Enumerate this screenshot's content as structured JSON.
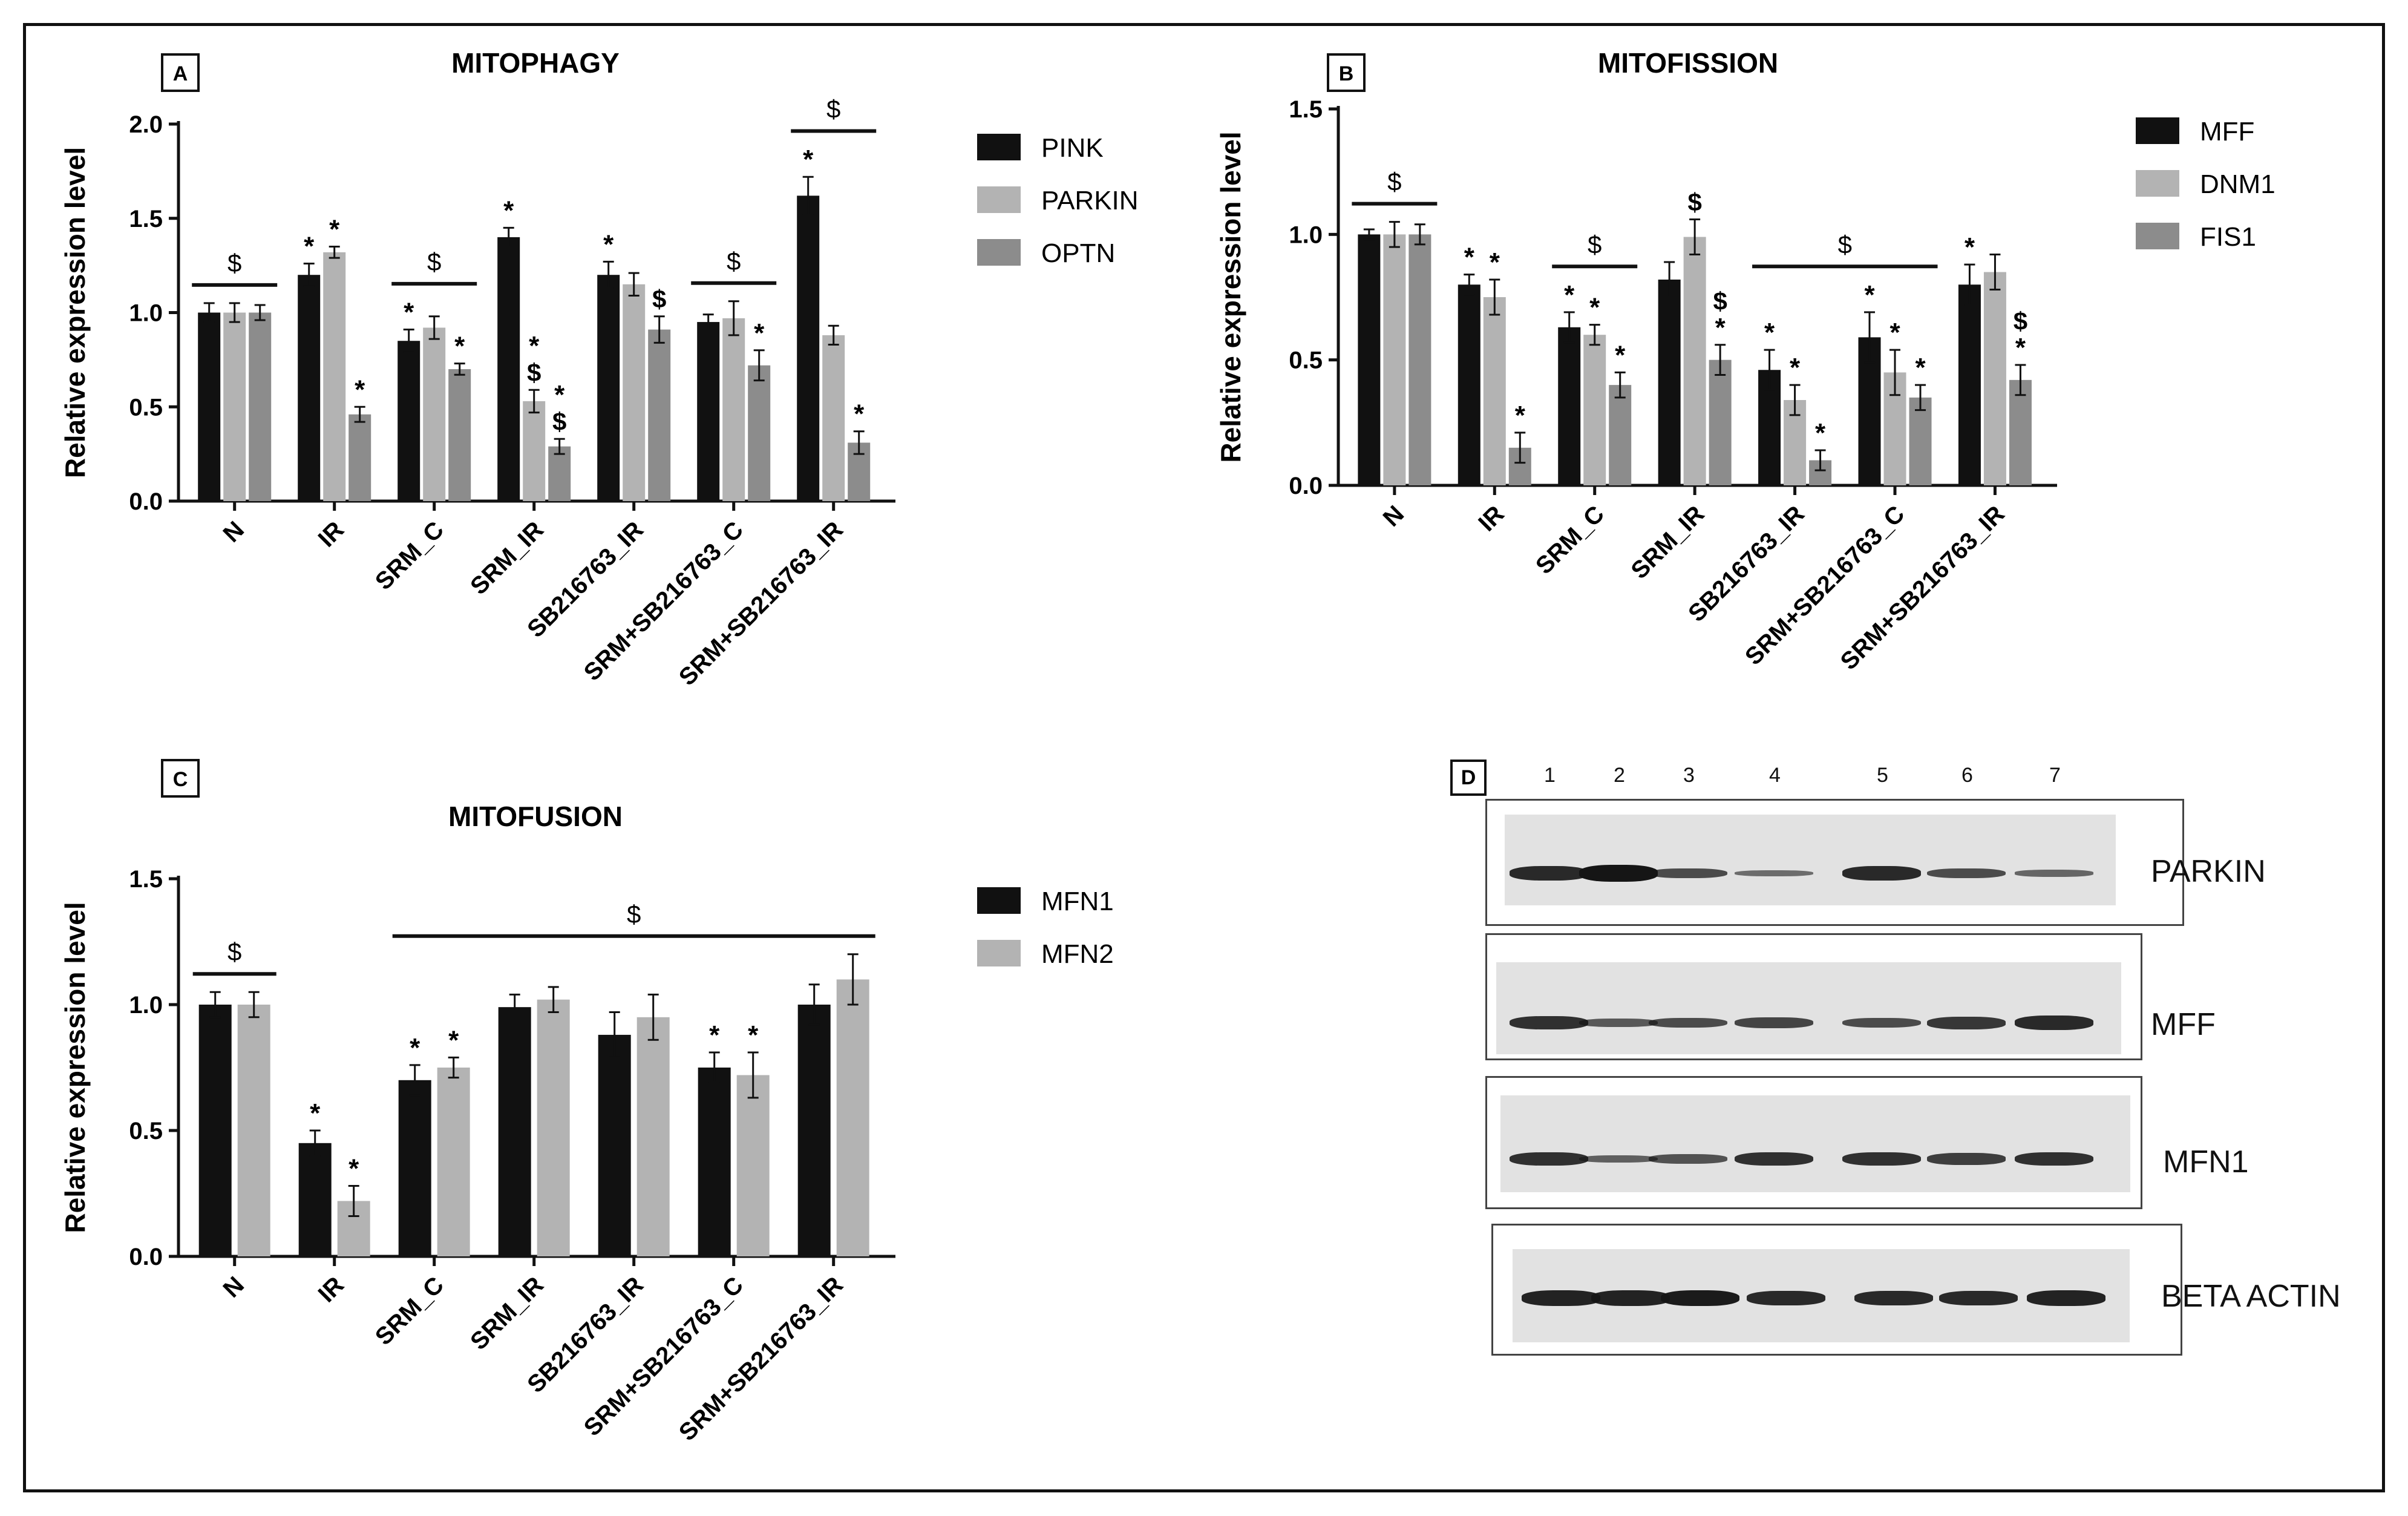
{
  "chart_data": [
    {
      "id": "A",
      "type": "bar",
      "panel_label": "A",
      "title": "MITOPHAGY",
      "ylabel": "Relative expression level",
      "xlabel": "",
      "ylim": [
        0,
        2.0
      ],
      "yticks": [
        "0.0",
        "0.5",
        "1.0",
        "1.5",
        "2.0"
      ],
      "categories": [
        "N",
        "IR",
        "SRM_C",
        "SRM_IR",
        "SB216763_IR",
        "SRM+SB216763_C",
        "SRM+SB216763_IR"
      ],
      "series": [
        {
          "name": "PINK",
          "color": "#111111",
          "values": [
            1.0,
            1.2,
            0.85,
            1.4,
            1.2,
            0.95,
            1.62
          ],
          "errors": [
            0.05,
            0.06,
            0.06,
            0.05,
            0.07,
            0.04,
            0.1
          ],
          "marks": [
            "",
            "*",
            "*",
            "*",
            "*",
            "",
            "*"
          ]
        },
        {
          "name": "PARKIN",
          "color": "#b3b3b3",
          "values": [
            1.0,
            1.32,
            0.92,
            0.53,
            1.15,
            0.97,
            0.88
          ],
          "errors": [
            0.05,
            0.03,
            0.06,
            0.06,
            0.06,
            0.09,
            0.05
          ],
          "marks": [
            "",
            "*",
            "",
            "*\n$",
            "",
            "",
            ""
          ]
        },
        {
          "name": "OPTN",
          "color": "#8c8c8c",
          "values": [
            1.0,
            0.46,
            0.7,
            0.29,
            0.91,
            0.72,
            0.31
          ],
          "errors": [
            0.04,
            0.04,
            0.03,
            0.04,
            0.07,
            0.08,
            0.06
          ],
          "marks": [
            "",
            "*",
            "*",
            "*\n$",
            "$",
            "*",
            "*"
          ]
        }
      ],
      "significance": [
        {
          "label": "$",
          "from": 0,
          "to": 0
        },
        {
          "label": "$",
          "from": 2,
          "to": 2
        },
        {
          "label": "$",
          "from": 5,
          "to": 5
        },
        {
          "label": "$",
          "from": 6,
          "to": 6
        }
      ]
    },
    {
      "id": "B",
      "type": "bar",
      "panel_label": "B",
      "title": "MITOFISSION",
      "ylabel": "Relative expression level",
      "xlabel": "",
      "ylim": [
        0,
        1.5
      ],
      "yticks": [
        "0.0",
        "0.5",
        "1.0",
        "1.5"
      ],
      "categories": [
        "N",
        "IR",
        "SRM_C",
        "SRM_IR",
        "SB216763_IR",
        "SRM+SB216763_C",
        "SRM+SB216763_IR"
      ],
      "series": [
        {
          "name": "MFF",
          "color": "#111111",
          "values": [
            1.0,
            0.8,
            0.63,
            0.82,
            0.46,
            0.59,
            0.8
          ],
          "errors": [
            0.02,
            0.04,
            0.06,
            0.07,
            0.08,
            0.1,
            0.08
          ],
          "marks": [
            "",
            "*",
            "*",
            "",
            "*",
            "*",
            "*"
          ]
        },
        {
          "name": "DNM1",
          "color": "#b3b3b3",
          "values": [
            1.0,
            0.75,
            0.6,
            0.99,
            0.34,
            0.45,
            0.85
          ],
          "errors": [
            0.05,
            0.07,
            0.04,
            0.07,
            0.06,
            0.09,
            0.07
          ],
          "marks": [
            "",
            "*",
            "*",
            "$",
            "*",
            "*",
            ""
          ]
        },
        {
          "name": "FIS1",
          "color": "#8c8c8c",
          "values": [
            1.0,
            0.15,
            0.4,
            0.5,
            0.1,
            0.35,
            0.42
          ],
          "errors": [
            0.04,
            0.06,
            0.05,
            0.06,
            0.04,
            0.05,
            0.06
          ],
          "marks": [
            "",
            "*",
            "*",
            "$\n*",
            "*",
            "*",
            "$\n*"
          ]
        }
      ],
      "significance": [
        {
          "label": "$",
          "from": 0,
          "to": 0
        },
        {
          "label": "$",
          "from": 2,
          "to": 2
        },
        {
          "label": "$",
          "from": 4,
          "to": 5
        }
      ]
    },
    {
      "id": "C",
      "type": "bar",
      "panel_label": "C",
      "title": "MITOFUSION",
      "ylabel": "Relative expression level",
      "xlabel": "",
      "ylim": [
        0,
        1.5
      ],
      "yticks": [
        "0.0",
        "0.5",
        "1.0",
        "1.5"
      ],
      "categories": [
        "N",
        "IR",
        "SRM_C",
        "SRM_IR",
        "SB216763_IR",
        "SRM+SB216763_C",
        "SRM+SB216763_IR"
      ],
      "series": [
        {
          "name": "MFN1",
          "color": "#111111",
          "values": [
            1.0,
            0.45,
            0.7,
            0.99,
            0.88,
            0.75,
            1.0
          ],
          "errors": [
            0.05,
            0.05,
            0.06,
            0.05,
            0.09,
            0.06,
            0.08
          ],
          "marks": [
            "",
            "*",
            "*",
            "",
            "",
            "*",
            ""
          ]
        },
        {
          "name": "MFN2",
          "color": "#b3b3b3",
          "values": [
            1.0,
            0.22,
            0.75,
            1.02,
            0.95,
            0.72,
            1.1
          ],
          "errors": [
            0.05,
            0.06,
            0.04,
            0.05,
            0.09,
            0.09,
            0.1
          ],
          "marks": [
            "",
            "*",
            "*",
            "",
            "",
            "*",
            ""
          ]
        }
      ],
      "significance": [
        {
          "label": "$",
          "from": 0,
          "to": 0
        },
        {
          "label": "$",
          "from": 2,
          "to": 6
        }
      ]
    }
  ],
  "western_blot": {
    "panel_label": "D",
    "lanes": [
      "1",
      "2",
      "3",
      "4",
      "5",
      "6",
      "7"
    ],
    "rows": [
      {
        "label": "PARKIN",
        "intensity": [
          0.85,
          1.0,
          0.6,
          0.35,
          0.85,
          0.6,
          0.4
        ]
      },
      {
        "label": "MFF",
        "intensity": [
          0.8,
          0.5,
          0.6,
          0.65,
          0.6,
          0.75,
          0.85
        ]
      },
      {
        "label": "MFN1",
        "intensity": [
          0.8,
          0.45,
          0.55,
          0.8,
          0.8,
          0.7,
          0.8
        ]
      },
      {
        "label": "BETA ACTIN",
        "intensity": [
          0.9,
          0.9,
          0.95,
          0.85,
          0.85,
          0.85,
          0.9
        ]
      }
    ]
  }
}
